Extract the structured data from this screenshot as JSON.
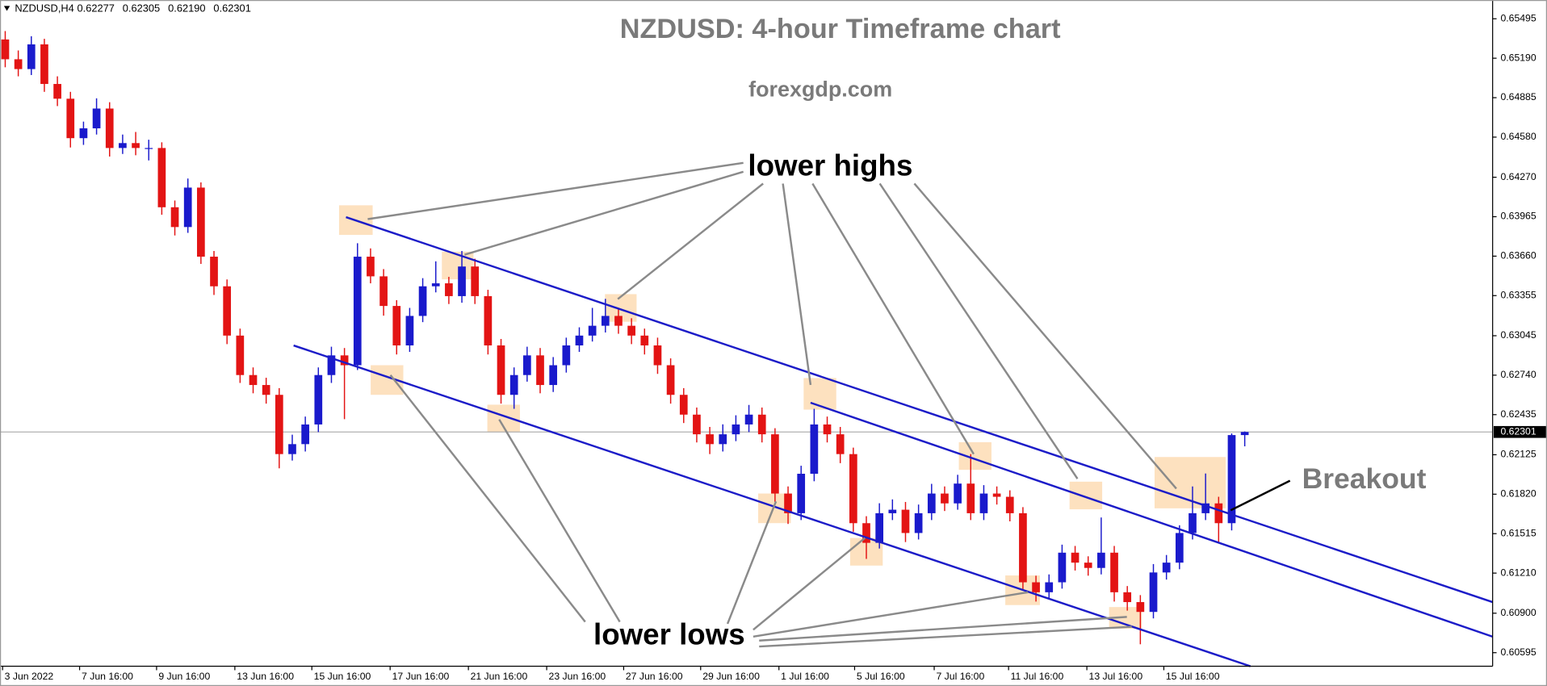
{
  "header": {
    "symbol": "NZDUSD,H4",
    "ohlc": [
      "0.62277",
      "0.62305",
      "0.62190",
      "0.62301"
    ]
  },
  "chart_data": {
    "type": "candlestick",
    "title": "NZDUSD: 4-hour Timeframe chart",
    "subtitle": "forexgdp.com",
    "annotations": {
      "lower_highs": "lower highs",
      "lower_lows": "lower lows",
      "breakout": "Breakout"
    },
    "up_color": "#1a1acc",
    "down_color": "#e31414",
    "grid": false,
    "current_price": 0.62301,
    "xlim": [
      -0.4,
      114
    ],
    "ylim": [
      0.6049,
      0.6564
    ],
    "yticks": [
      0.65495,
      {
        "value": 0.6519,
        "label": "0.65190"
      },
      0.64885,
      {
        "value": 0.6458,
        "label": "0.64580"
      },
      {
        "value": 0.6427,
        "label": "0.64270"
      },
      0.63965,
      {
        "value": 0.6366,
        "label": "0.63660"
      },
      0.63355,
      0.63045,
      {
        "value": 0.6274,
        "label": "0.62740"
      },
      0.62435,
      0.62125,
      {
        "value": 0.6182,
        "label": "0.61820"
      },
      0.61515,
      {
        "value": 0.6121,
        "label": "0.61210"
      },
      {
        "value": 0.609,
        "label": "0.60900"
      },
      0.60595
    ],
    "xticks": [
      {
        "value": -0.2,
        "label": "3 Jun 2022"
      },
      {
        "value": 5.7,
        "label": "7 Jun 16:00"
      },
      {
        "value": 11.6,
        "label": "9 Jun 16:00"
      },
      {
        "value": 17.6,
        "label": "13 Jun 16:00"
      },
      {
        "value": 23.5,
        "label": "15 Jun 16:00"
      },
      {
        "value": 29.5,
        "label": "17 Jun 16:00"
      },
      {
        "value": 35.5,
        "label": "21 Jun 16:00"
      },
      {
        "value": 41.5,
        "label": "23 Jun 16:00"
      },
      {
        "value": 47.4,
        "label": "27 Jun 16:00"
      },
      {
        "value": 53.3,
        "label": "29 Jun 16:00"
      },
      {
        "value": 59.3,
        "label": "1 Jul 16:00"
      },
      {
        "value": 65.1,
        "label": "5 Jul 16:00"
      },
      {
        "value": 71.2,
        "label": "7 Jul 16:00"
      },
      {
        "value": 76.9,
        "label": "11 Jul 16:00"
      },
      {
        "value": 82.9,
        "label": "13 Jul 16:00"
      },
      {
        "value": 88.8,
        "label": "15 Jul 16:00"
      }
    ],
    "candles": [
      [
        0.65335,
        0.654,
        0.6512,
        0.65182
      ],
      [
        0.65182,
        0.6525,
        0.6505,
        0.65106
      ],
      [
        0.65106,
        0.6536,
        0.6506,
        0.65297
      ],
      [
        0.65297,
        0.6534,
        0.6493,
        0.64991
      ],
      [
        0.64991,
        0.6505,
        0.6482,
        0.64877
      ],
      [
        0.64877,
        0.6493,
        0.645,
        0.64572
      ],
      [
        0.64572,
        0.647,
        0.6452,
        0.64648
      ],
      [
        0.64648,
        0.6488,
        0.646,
        0.64801
      ],
      [
        0.64801,
        0.6485,
        0.6443,
        0.64496
      ],
      [
        0.64496,
        0.646,
        0.6445,
        0.64534
      ],
      [
        0.64534,
        0.6462,
        0.6444,
        0.64496
      ],
      [
        0.64496,
        0.6456,
        0.644,
        0.64496
      ],
      [
        0.64496,
        0.6454,
        0.6398,
        0.64038
      ],
      [
        0.64038,
        0.6409,
        0.6382,
        0.63885
      ],
      [
        0.63885,
        0.6426,
        0.6384,
        0.6419
      ],
      [
        0.6419,
        0.6423,
        0.636,
        0.63656
      ],
      [
        0.63656,
        0.637,
        0.6336,
        0.63427
      ],
      [
        0.63427,
        0.6348,
        0.6298,
        0.63046
      ],
      [
        0.63046,
        0.631,
        0.6268,
        0.62741
      ],
      [
        0.62741,
        0.628,
        0.626,
        0.62664
      ],
      [
        0.62664,
        0.6272,
        0.6252,
        0.62588
      ],
      [
        0.62588,
        0.6264,
        0.6202,
        0.6213
      ],
      [
        0.6213,
        0.6228,
        0.6208,
        0.62207
      ],
      [
        0.62207,
        0.6242,
        0.6215,
        0.62359
      ],
      [
        0.62359,
        0.628,
        0.623,
        0.62741
      ],
      [
        0.62741,
        0.6296,
        0.6268,
        0.62893
      ],
      [
        0.62893,
        0.6295,
        0.624,
        0.62817
      ],
      [
        0.62817,
        0.6376,
        0.6278,
        0.63656
      ],
      [
        0.63656,
        0.6372,
        0.6345,
        0.63504
      ],
      [
        0.63504,
        0.6356,
        0.632,
        0.63275
      ],
      [
        0.63275,
        0.6332,
        0.629,
        0.6297
      ],
      [
        0.6297,
        0.6326,
        0.6292,
        0.63198
      ],
      [
        0.63198,
        0.6349,
        0.6315,
        0.63427
      ],
      [
        0.63427,
        0.6362,
        0.6338,
        0.6345
      ],
      [
        0.6345,
        0.635,
        0.6329,
        0.63351
      ],
      [
        0.63351,
        0.637,
        0.633,
        0.6358
      ],
      [
        0.6358,
        0.6364,
        0.6329,
        0.63351
      ],
      [
        0.63351,
        0.634,
        0.629,
        0.6297
      ],
      [
        0.6297,
        0.6302,
        0.6252,
        0.62588
      ],
      [
        0.62588,
        0.628,
        0.6248,
        0.62741
      ],
      [
        0.62741,
        0.6296,
        0.6269,
        0.62893
      ],
      [
        0.62893,
        0.6295,
        0.626,
        0.62664
      ],
      [
        0.62664,
        0.6288,
        0.6261,
        0.62817
      ],
      [
        0.62817,
        0.6303,
        0.6276,
        0.6297
      ],
      [
        0.6297,
        0.6311,
        0.6292,
        0.63046
      ],
      [
        0.63046,
        0.6326,
        0.63,
        0.63122
      ],
      [
        0.63122,
        0.6333,
        0.6307,
        0.63198
      ],
      [
        0.63198,
        0.6326,
        0.6306,
        0.63122
      ],
      [
        0.63122,
        0.6318,
        0.6298,
        0.63046
      ],
      [
        0.63046,
        0.631,
        0.629,
        0.6297
      ],
      [
        0.6297,
        0.6303,
        0.6275,
        0.62817
      ],
      [
        0.62817,
        0.6287,
        0.6252,
        0.62588
      ],
      [
        0.62588,
        0.6264,
        0.6237,
        0.62435
      ],
      [
        0.62435,
        0.6249,
        0.6222,
        0.62283
      ],
      [
        0.62283,
        0.6234,
        0.6213,
        0.62207
      ],
      [
        0.62207,
        0.6236,
        0.6215,
        0.62283
      ],
      [
        0.62283,
        0.6243,
        0.6223,
        0.62359
      ],
      [
        0.62359,
        0.6251,
        0.623,
        0.62435
      ],
      [
        0.62435,
        0.6249,
        0.6222,
        0.62283
      ],
      [
        0.62283,
        0.6233,
        0.6176,
        0.61825
      ],
      [
        0.61825,
        0.6188,
        0.6159,
        0.61673
      ],
      [
        0.61673,
        0.6204,
        0.6162,
        0.61978
      ],
      [
        0.61978,
        0.6248,
        0.6192,
        0.62359
      ],
      [
        0.62359,
        0.6242,
        0.6222,
        0.62283
      ],
      [
        0.62283,
        0.6234,
        0.6206,
        0.6213
      ],
      [
        0.6213,
        0.6218,
        0.6153,
        0.61596
      ],
      [
        0.61596,
        0.6165,
        0.6132,
        0.61444
      ],
      [
        0.61444,
        0.6175,
        0.614,
        0.61673
      ],
      [
        0.61673,
        0.6178,
        0.6162,
        0.617
      ],
      [
        0.617,
        0.6176,
        0.6145,
        0.6152
      ],
      [
        0.6152,
        0.6174,
        0.6147,
        0.61673
      ],
      [
        0.61673,
        0.619,
        0.6162,
        0.61825
      ],
      [
        0.61825,
        0.6188,
        0.6169,
        0.61749
      ],
      [
        0.61749,
        0.6197,
        0.617,
        0.61902
      ],
      [
        0.61902,
        0.6213,
        0.6162,
        0.61673
      ],
      [
        0.61673,
        0.6189,
        0.6162,
        0.61825
      ],
      [
        0.61825,
        0.6188,
        0.6174,
        0.618
      ],
      [
        0.618,
        0.6185,
        0.6161,
        0.61673
      ],
      [
        0.61673,
        0.6172,
        0.6108,
        0.61139
      ],
      [
        0.61139,
        0.6119,
        0.6099,
        0.61062
      ],
      [
        0.61062,
        0.612,
        0.6101,
        0.61139
      ],
      [
        0.61139,
        0.6143,
        0.6109,
        0.61368
      ],
      [
        0.61368,
        0.6142,
        0.6123,
        0.61291
      ],
      [
        0.61291,
        0.6134,
        0.6119,
        0.6125
      ],
      [
        0.6125,
        0.6164,
        0.612,
        0.61368
      ],
      [
        0.61368,
        0.6142,
        0.6099,
        0.61062
      ],
      [
        0.61062,
        0.6111,
        0.6092,
        0.60986
      ],
      [
        0.60986,
        0.6104,
        0.6066,
        0.6091
      ],
      [
        0.6091,
        0.6128,
        0.6086,
        0.61215
      ],
      [
        0.61215,
        0.6135,
        0.6116,
        0.61291
      ],
      [
        0.61291,
        0.6158,
        0.6124,
        0.6152
      ],
      [
        0.6152,
        0.6188,
        0.6147,
        0.61673
      ],
      [
        0.61673,
        0.6198,
        0.6162,
        0.61749
      ],
      [
        0.61749,
        0.618,
        0.6144,
        0.61596
      ],
      [
        0.61596,
        0.6229,
        0.6154,
        0.62277
      ],
      [
        0.62277,
        0.62305,
        0.6219,
        0.62301
      ]
    ]
  }
}
